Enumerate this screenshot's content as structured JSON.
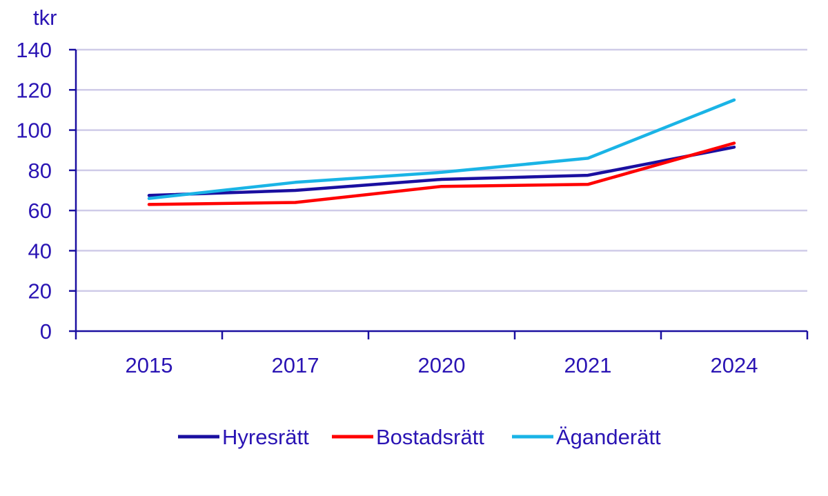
{
  "chart_data": {
    "type": "line",
    "ylabel": "tkr",
    "categories": [
      "2015",
      "2017",
      "2020",
      "2021",
      "2024"
    ],
    "ylim": [
      0,
      140
    ],
    "yticks": [
      0,
      20,
      40,
      60,
      80,
      100,
      120,
      140
    ],
    "grid": true,
    "legend_position": "bottom",
    "series": [
      {
        "name": "Hyresrätt",
        "color": "#1a0fa0",
        "values": [
          67.5,
          70,
          75.5,
          77.5,
          91.5
        ]
      },
      {
        "name": "Bostadsrätt",
        "color": "#ff0000",
        "values": [
          63,
          64,
          72,
          73,
          93.5
        ]
      },
      {
        "name": "Äganderätt",
        "color": "#1ab4e6",
        "values": [
          66,
          74,
          79,
          86,
          115
        ]
      }
    ],
    "colors": {
      "axis": "#1a0fa0",
      "text": "#2a14b4",
      "grid": "#cfcbe8"
    }
  }
}
